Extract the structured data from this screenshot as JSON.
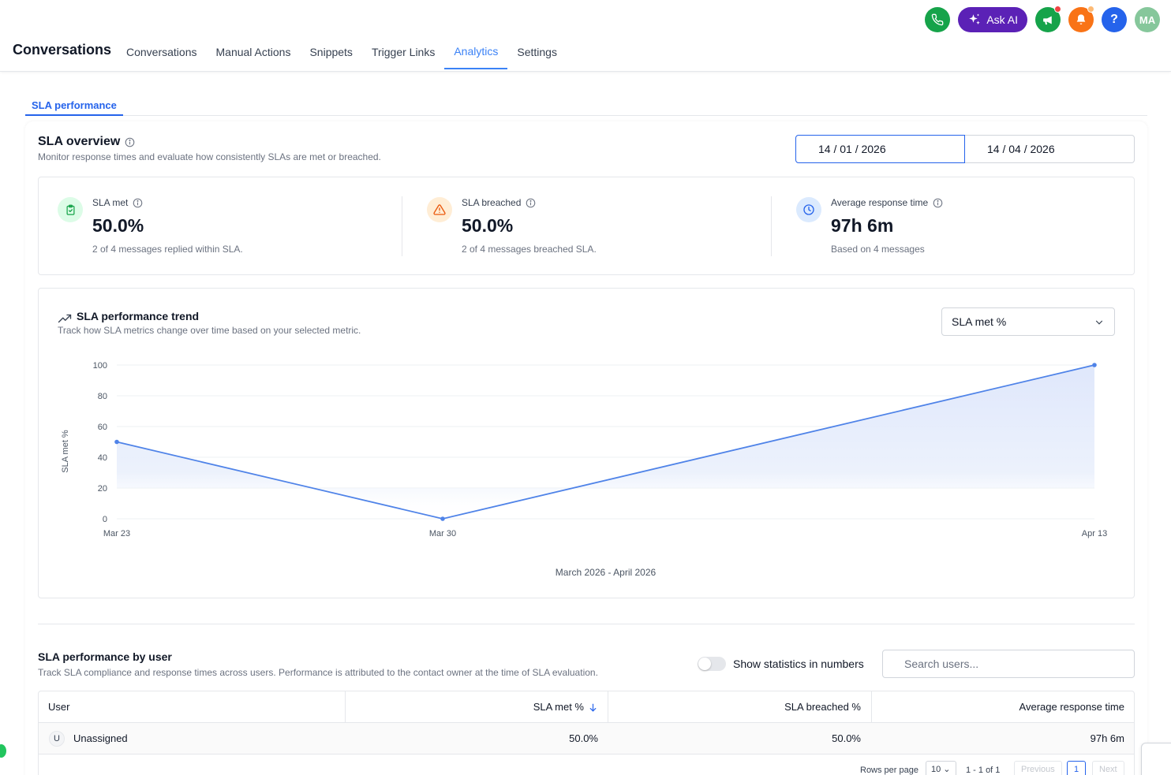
{
  "header": {
    "app_title": "Conversations",
    "nav": [
      {
        "label": "Conversations",
        "active": false
      },
      {
        "label": "Manual Actions",
        "active": false
      },
      {
        "label": "Snippets",
        "active": false
      },
      {
        "label": "Trigger Links",
        "active": false
      },
      {
        "label": "Analytics",
        "active": true
      },
      {
        "label": "Settings",
        "active": false
      }
    ],
    "ask_ai_label": "Ask AI",
    "help_label": "?",
    "avatar_initials": "MA",
    "icons": [
      "phone-icon",
      "sparkle-icon",
      "megaphone-icon",
      "bell-icon",
      "help-icon"
    ]
  },
  "subtab": {
    "label": "SLA performance"
  },
  "overview": {
    "title": "SLA overview",
    "subtitle": "Monitor response times and evaluate how consistently SLAs are met or breached.",
    "date_from": "14 / 01 / 2026",
    "date_to": "14 / 04 / 2026"
  },
  "kpis": [
    {
      "label": "SLA met",
      "value": "50.0%",
      "desc": "2 of 4 messages replied within SLA.",
      "icon": "clipboard-check-icon",
      "color": "#16a34a",
      "bg": "#dcfce7"
    },
    {
      "label": "SLA breached",
      "value": "50.0%",
      "desc": "2 of 4 messages breached SLA.",
      "icon": "warning-triangle-icon",
      "color": "#ea580c",
      "bg": "#ffedd5"
    },
    {
      "label": "Average response time",
      "value": "97h 6m",
      "desc": "Based on 4 messages",
      "icon": "clock-icon",
      "color": "#2563eb",
      "bg": "#dbeafe"
    }
  ],
  "trend": {
    "title": "SLA performance trend",
    "subtitle": "Track how SLA metrics change over time based on your selected metric.",
    "metric_selected": "SLA met %"
  },
  "chart_data": {
    "type": "area",
    "x": [
      "Mar 23",
      "Mar 30",
      "Apr 13"
    ],
    "x_dates": [
      "2026-03-23",
      "2026-03-30",
      "2026-04-13"
    ],
    "series": [
      {
        "name": "SLA met %",
        "values": [
          50,
          0,
          100
        ]
      }
    ],
    "ylabel": "SLA met %",
    "xlabel": "March 2026 - April 2026",
    "ylim": [
      0,
      100
    ],
    "yticks": [
      0,
      20,
      40,
      60,
      80,
      100
    ],
    "grid": true,
    "color": "#4f83e8"
  },
  "users": {
    "title": "SLA performance by user",
    "subtitle": "Track SLA compliance and response times across users. Performance is attributed to the contact owner at the time of SLA evaluation.",
    "toggle_label": "Show statistics in numbers",
    "toggle_on": false,
    "search_placeholder": "Search users...",
    "columns": [
      "User",
      "SLA met %",
      "SLA breached %",
      "Average response time"
    ],
    "sort_column": "SLA met %",
    "sort_direction": "desc",
    "rows": [
      {
        "initial": "U",
        "user": "Unassigned",
        "sla_met": "50.0%",
        "sla_breached": "50.0%",
        "avg_response": "97h 6m"
      }
    ],
    "pagination": {
      "rows_per_page_label": "Rows per page",
      "rows_per_page": "10",
      "range": "1 - 1 of 1",
      "previous": "Previous",
      "page": "1",
      "next": "Next"
    }
  }
}
